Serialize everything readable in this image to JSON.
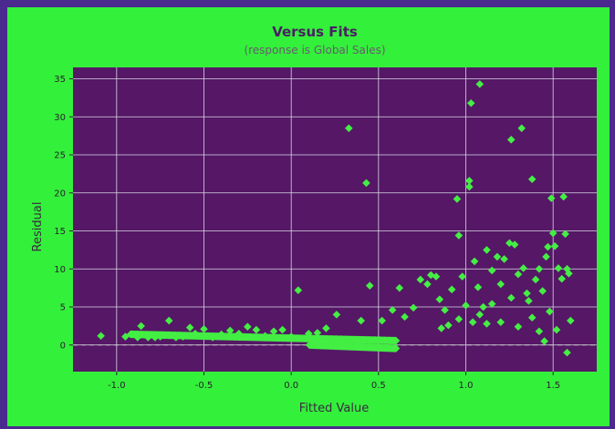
{
  "colors": {
    "page_background": "#4a2a8f",
    "figure_background": "#33f03a",
    "plot_background": "#551766",
    "marker": "#44ee44",
    "grid": "#d9d9e6",
    "reference_line": "#c8c8c8"
  },
  "chart_data": {
    "type": "scatter",
    "title": "Versus Fits",
    "subtitle": "(response is Global Sales)",
    "xlabel": "Fitted Value",
    "ylabel": "Residual",
    "xlim": [
      -1.25,
      1.75
    ],
    "ylim": [
      -3.5,
      36.5
    ],
    "xticks": [
      -1.0,
      -0.5,
      0.0,
      0.5,
      1.0,
      1.5
    ],
    "xtick_labels": [
      "-1.0",
      "-0.5",
      "0.0",
      "0.5",
      "1.0",
      "1.5"
    ],
    "yticks": [
      0,
      5,
      10,
      15,
      20,
      25,
      30,
      35
    ],
    "ytick_labels": [
      "0",
      "5",
      "10",
      "15",
      "20",
      "25",
      "30",
      "35"
    ],
    "grid": true,
    "marker": "diamond",
    "reference_line_y": 0,
    "points": [
      [
        -1.09,
        1.2
      ],
      [
        -0.95,
        1.1
      ],
      [
        -0.88,
        1.0
      ],
      [
        -0.86,
        2.5
      ],
      [
        -0.82,
        1.0
      ],
      [
        -0.78,
        1.0
      ],
      [
        -0.75,
        1.1
      ],
      [
        -0.7,
        3.2
      ],
      [
        -0.66,
        1.0
      ],
      [
        -0.62,
        1.1
      ],
      [
        -0.58,
        2.3
      ],
      [
        -0.55,
        1.5
      ],
      [
        -0.5,
        2.1
      ],
      [
        -0.45,
        1.0
      ],
      [
        -0.4,
        1.4
      ],
      [
        -0.35,
        1.9
      ],
      [
        -0.3,
        1.5
      ],
      [
        -0.25,
        2.4
      ],
      [
        -0.2,
        2.0
      ],
      [
        -0.15,
        1.2
      ],
      [
        -0.1,
        1.8
      ],
      [
        -0.05,
        2.0
      ],
      [
        0.0,
        1.1
      ],
      [
        0.04,
        7.2
      ],
      [
        0.1,
        1.5
      ],
      [
        0.15,
        1.6
      ],
      [
        0.2,
        2.2
      ],
      [
        0.26,
        4.0
      ],
      [
        0.33,
        28.5
      ],
      [
        0.4,
        3.2
      ],
      [
        0.43,
        21.3
      ],
      [
        0.45,
        7.8
      ],
      [
        0.52,
        3.2
      ],
      [
        0.58,
        4.6
      ],
      [
        0.62,
        7.5
      ],
      [
        0.65,
        3.7
      ],
      [
        0.7,
        4.9
      ],
      [
        0.74,
        8.6
      ],
      [
        0.78,
        8.0
      ],
      [
        0.8,
        9.2
      ],
      [
        0.83,
        9.0
      ],
      [
        0.85,
        6.0
      ],
      [
        0.88,
        4.6
      ],
      [
        0.92,
        7.3
      ],
      [
        0.95,
        19.2
      ],
      [
        0.96,
        14.4
      ],
      [
        0.98,
        9.0
      ],
      [
        1.0,
        5.2
      ],
      [
        1.02,
        21.6
      ],
      [
        1.02,
        20.8
      ],
      [
        1.03,
        31.8
      ],
      [
        1.05,
        11.0
      ],
      [
        1.07,
        7.6
      ],
      [
        1.08,
        34.3
      ],
      [
        1.1,
        5.0
      ],
      [
        1.12,
        12.5
      ],
      [
        1.15,
        9.8
      ],
      [
        1.18,
        11.6
      ],
      [
        1.2,
        8.0
      ],
      [
        1.22,
        11.3
      ],
      [
        1.25,
        13.4
      ],
      [
        1.26,
        27.0
      ],
      [
        1.28,
        13.2
      ],
      [
        1.3,
        9.3
      ],
      [
        1.32,
        28.5
      ],
      [
        1.33,
        10.1
      ],
      [
        1.35,
        6.8
      ],
      [
        1.38,
        21.8
      ],
      [
        1.4,
        8.6
      ],
      [
        1.42,
        10.0
      ],
      [
        1.44,
        7.1
      ],
      [
        1.46,
        11.6
      ],
      [
        1.47,
        12.9
      ],
      [
        1.49,
        19.3
      ],
      [
        1.5,
        14.7
      ],
      [
        1.51,
        13.0
      ],
      [
        1.53,
        10.1
      ],
      [
        1.55,
        8.7
      ],
      [
        1.56,
        19.5
      ],
      [
        1.57,
        14.6
      ],
      [
        1.58,
        10.0
      ],
      [
        1.59,
        9.4
      ],
      [
        1.6,
        3.2
      ],
      [
        1.58,
        -1.0
      ],
      [
        1.52,
        2.0
      ],
      [
        1.48,
        4.4
      ],
      [
        1.45,
        0.5
      ],
      [
        1.42,
        1.8
      ],
      [
        1.38,
        3.6
      ],
      [
        1.36,
        5.8
      ],
      [
        1.3,
        2.4
      ],
      [
        1.26,
        6.2
      ],
      [
        1.2,
        3.0
      ],
      [
        1.15,
        5.4
      ],
      [
        1.12,
        2.8
      ],
      [
        1.08,
        4.0
      ],
      [
        1.04,
        3.0
      ],
      [
        0.96,
        3.4
      ],
      [
        0.9,
        2.6
      ],
      [
        0.86,
        2.2
      ]
    ]
  }
}
